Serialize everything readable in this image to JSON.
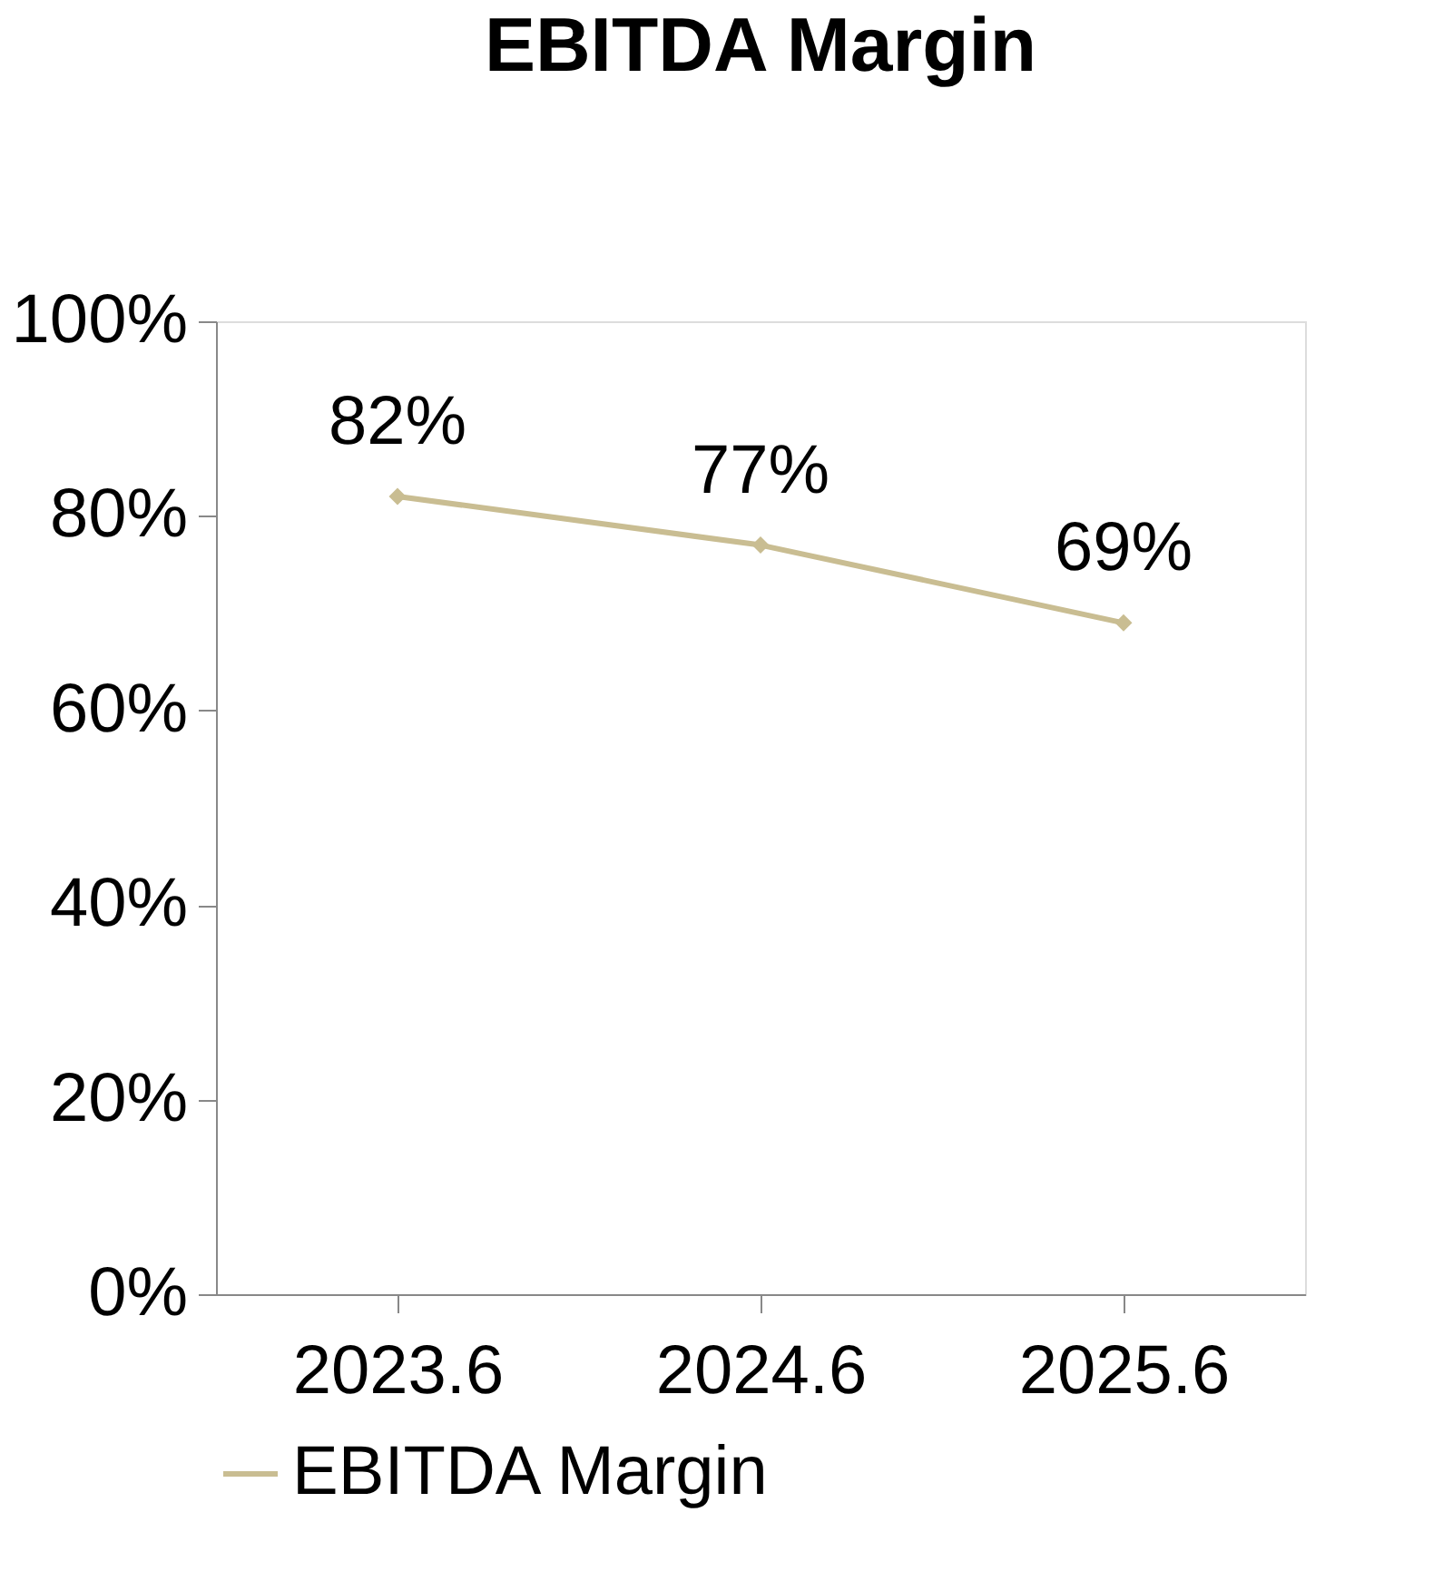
{
  "chart_data": {
    "type": "line",
    "title": "EBITDA Margin",
    "categories": [
      "2023.6",
      "2024.6",
      "2025.6"
    ],
    "series": [
      {
        "name": "EBITDA Margin",
        "color": "#c9bd92",
        "values": [
          82,
          77,
          69
        ],
        "value_labels": [
          "82%",
          "77%",
          "69%"
        ]
      }
    ],
    "ylim": [
      0,
      100
    ],
    "yticks": [
      {
        "value": 0,
        "label": "0%"
      },
      {
        "value": 20,
        "label": "20%"
      },
      {
        "value": 40,
        "label": "40%"
      },
      {
        "value": 60,
        "label": "60%"
      },
      {
        "value": 80,
        "label": "80%"
      },
      {
        "value": 100,
        "label": "100%"
      }
    ],
    "grid": false,
    "legend": "bottom",
    "marker": "diamond",
    "line_style": "solid"
  }
}
